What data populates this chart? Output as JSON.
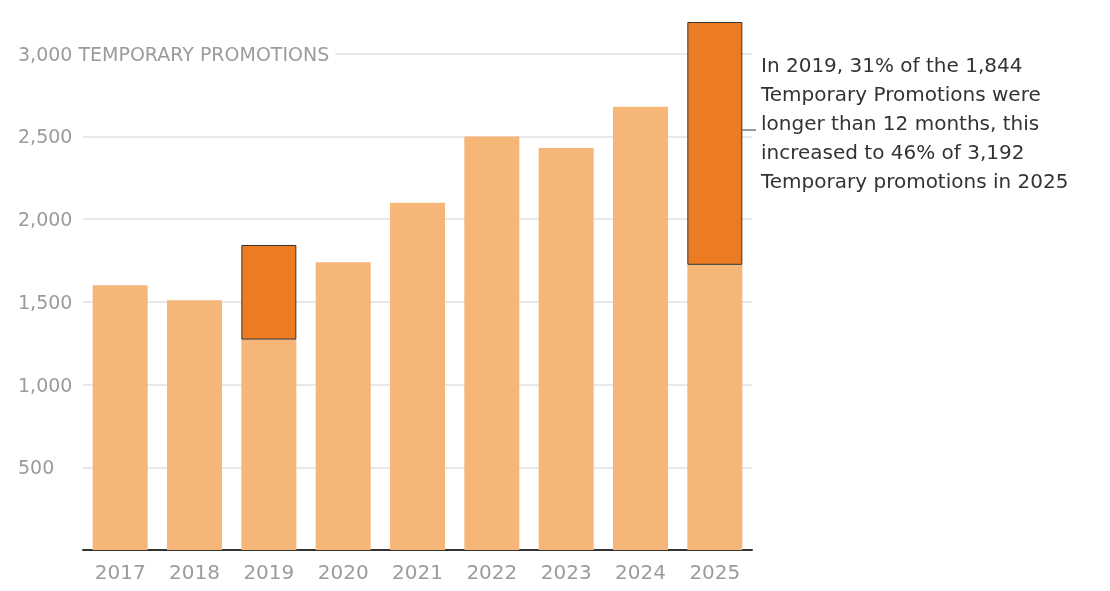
{
  "chart_data": {
    "type": "bar",
    "stacked": true,
    "categories": [
      "2017",
      "2018",
      "2019",
      "2020",
      "2021",
      "2022",
      "2023",
      "2024",
      "2025"
    ],
    "series": [
      {
        "color": "#f5b677",
        "values": [
          1600,
          1510,
          1272,
          1740,
          2100,
          2500,
          2430,
          2680,
          1724
        ]
      },
      {
        "color": "#ec7c24",
        "values": [
          null,
          null,
          572,
          null,
          null,
          null,
          null,
          null,
          1468
        ]
      }
    ],
    "ylim": [
      0,
      3192
    ],
    "yticks": [
      500,
      {
        "value": 1000,
        "label": "1,000"
      },
      {
        "value": 1500,
        "label": "1,500"
      },
      {
        "value": 2000,
        "label": "2,000"
      },
      {
        "value": 2500,
        "label": "2,500"
      },
      {
        "value": 3000,
        "label": "3,000 TEMPORARY PROMOTIONS"
      }
    ],
    "grid": "y",
    "annotations": [
      "In 2019, 31% of the 1,844 Temporary Promotions were longer than 12 months, this increased to 46% of 3,192 Temporary promotions in 2025"
    ]
  }
}
